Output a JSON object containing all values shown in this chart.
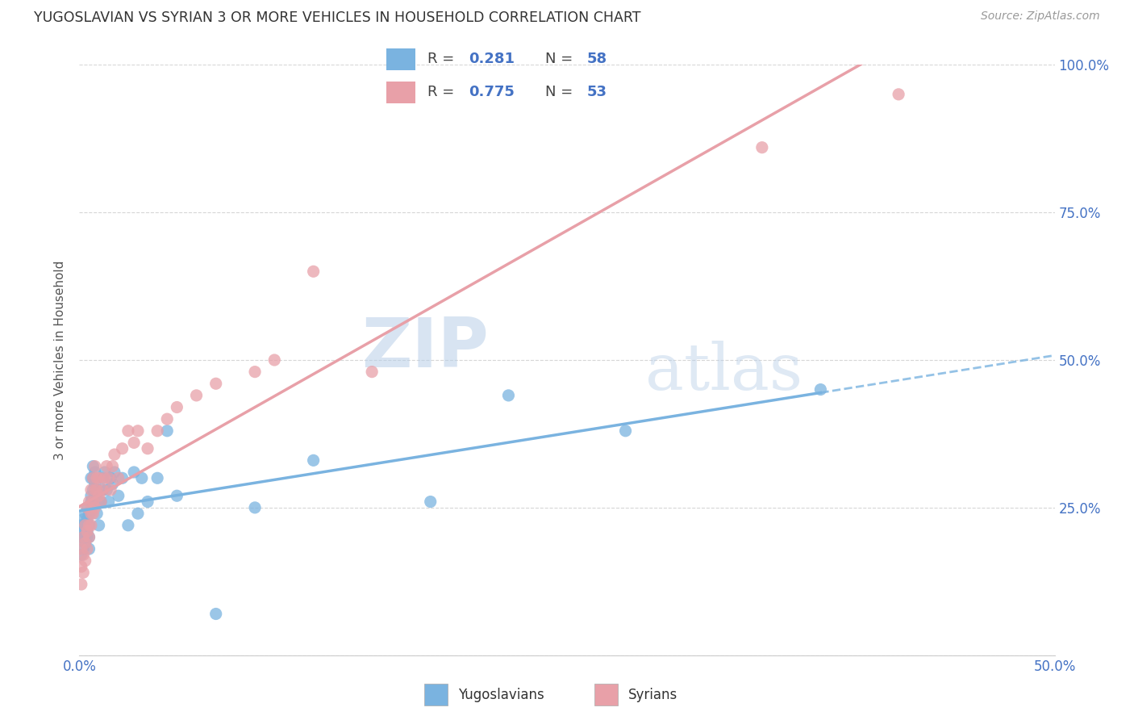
{
  "title": "YUGOSLAVIAN VS SYRIAN 3 OR MORE VEHICLES IN HOUSEHOLD CORRELATION CHART",
  "source": "Source: ZipAtlas.com",
  "ylabel": "3 or more Vehicles in Household",
  "yugo_color": "#7ab3e0",
  "syrian_color": "#e8a0a8",
  "yugo_R": 0.281,
  "yugo_N": 58,
  "syrian_R": 0.775,
  "syrian_N": 53,
  "background_color": "#ffffff",
  "grid_color": "#cccccc",
  "watermark_zip": "ZIP",
  "watermark_atlas": "atlas",
  "yugo_scatter_x": [
    0.001,
    0.001,
    0.001,
    0.002,
    0.002,
    0.002,
    0.002,
    0.003,
    0.003,
    0.003,
    0.003,
    0.004,
    0.004,
    0.004,
    0.004,
    0.005,
    0.005,
    0.005,
    0.005,
    0.006,
    0.006,
    0.006,
    0.007,
    0.007,
    0.007,
    0.008,
    0.008,
    0.008,
    0.009,
    0.009,
    0.01,
    0.01,
    0.011,
    0.012,
    0.012,
    0.013,
    0.014,
    0.015,
    0.016,
    0.017,
    0.018,
    0.02,
    0.022,
    0.025,
    0.028,
    0.03,
    0.032,
    0.035,
    0.04,
    0.045,
    0.05,
    0.07,
    0.09,
    0.12,
    0.18,
    0.22,
    0.28,
    0.38
  ],
  "yugo_scatter_y": [
    0.2,
    0.22,
    0.17,
    0.21,
    0.2,
    0.23,
    0.18,
    0.22,
    0.2,
    0.24,
    0.19,
    0.23,
    0.21,
    0.25,
    0.2,
    0.22,
    0.2,
    0.24,
    0.18,
    0.3,
    0.27,
    0.26,
    0.28,
    0.3,
    0.32,
    0.29,
    0.27,
    0.31,
    0.28,
    0.24,
    0.26,
    0.22,
    0.26,
    0.28,
    0.3,
    0.31,
    0.28,
    0.26,
    0.3,
    0.29,
    0.31,
    0.27,
    0.3,
    0.22,
    0.31,
    0.24,
    0.3,
    0.26,
    0.3,
    0.38,
    0.27,
    0.07,
    0.25,
    0.33,
    0.26,
    0.44,
    0.38,
    0.45
  ],
  "syrian_scatter_x": [
    0.001,
    0.001,
    0.001,
    0.002,
    0.002,
    0.002,
    0.003,
    0.003,
    0.003,
    0.004,
    0.004,
    0.004,
    0.005,
    0.005,
    0.005,
    0.006,
    0.006,
    0.006,
    0.007,
    0.007,
    0.007,
    0.008,
    0.008,
    0.008,
    0.009,
    0.009,
    0.01,
    0.01,
    0.011,
    0.012,
    0.013,
    0.014,
    0.015,
    0.016,
    0.017,
    0.018,
    0.02,
    0.022,
    0.025,
    0.028,
    0.03,
    0.035,
    0.04,
    0.045,
    0.05,
    0.06,
    0.07,
    0.09,
    0.1,
    0.12,
    0.15,
    0.35,
    0.42
  ],
  "syrian_scatter_y": [
    0.18,
    0.15,
    0.12,
    0.17,
    0.14,
    0.2,
    0.19,
    0.16,
    0.22,
    0.21,
    0.18,
    0.25,
    0.22,
    0.2,
    0.26,
    0.24,
    0.22,
    0.28,
    0.26,
    0.24,
    0.3,
    0.28,
    0.25,
    0.32,
    0.3,
    0.28,
    0.3,
    0.27,
    0.26,
    0.28,
    0.3,
    0.32,
    0.3,
    0.28,
    0.32,
    0.34,
    0.3,
    0.35,
    0.38,
    0.36,
    0.38,
    0.35,
    0.38,
    0.4,
    0.42,
    0.44,
    0.46,
    0.48,
    0.5,
    0.65,
    0.48,
    0.86,
    0.95
  ]
}
